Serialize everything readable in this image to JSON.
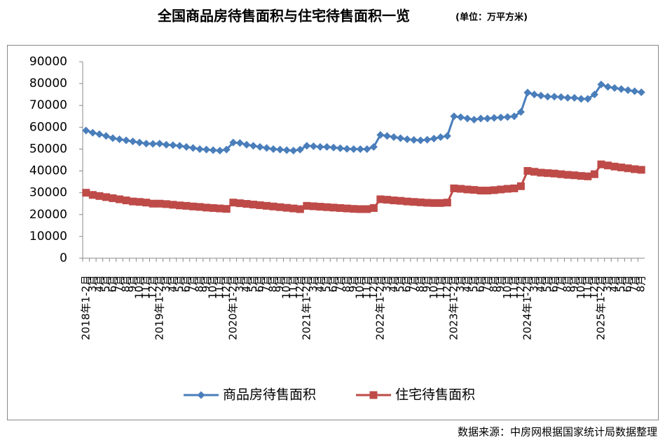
{
  "chart_data": {
    "type": "line",
    "title": "全国商品房待售面积与住宅待售面积一览",
    "subtitle": "(单位：万平方米)",
    "source": "数据来源：中房网根据国家统计局数据整理",
    "categories": [
      "2018年1-2月",
      "3月",
      "4月",
      "5月",
      "6月",
      "7月",
      "8月",
      "9月",
      "10月",
      "11月",
      "12月",
      "2019年1-2月",
      "3月",
      "4月",
      "5月",
      "6月",
      "7月",
      "8月",
      "9月",
      "10月",
      "11月",
      "12月",
      "2020年1-2月",
      "3月",
      "4月",
      "5月",
      "6月",
      "7月",
      "8月",
      "9月",
      "10月",
      "11月",
      "12月",
      "2021年1-2月",
      "3月",
      "4月",
      "5月",
      "6月",
      "7月",
      "8月",
      "9月",
      "10月",
      "11月",
      "12月",
      "2022年1-2月",
      "3月",
      "4月",
      "5月",
      "6月",
      "7月",
      "8月",
      "9月",
      "10月",
      "11月",
      "12月",
      "2023年1-2月",
      "3月",
      "4月",
      "5月",
      "6月",
      "7月",
      "8月",
      "9月",
      "10月",
      "11月",
      "12月",
      "2024年1-2月",
      "3月",
      "4月",
      "5月",
      "6月",
      "7月",
      "8月",
      "9月",
      "10月",
      "11月",
      "12月",
      "2025年1-2月",
      "3月",
      "4月",
      "5月",
      "6月",
      "7月",
      "8月"
    ],
    "series": [
      {
        "name": "商品房待售面积",
        "color": "#4a7ebb",
        "marker": "diamond",
        "values": [
          58500,
          57500,
          56800,
          56000,
          55000,
          54500,
          54000,
          53500,
          53000,
          52500,
          52400,
          52500,
          52000,
          51800,
          51500,
          51000,
          50500,
          50000,
          49800,
          49500,
          49300,
          49800,
          53000,
          52800,
          52000,
          51500,
          51000,
          50500,
          50000,
          49800,
          49500,
          49300,
          49800,
          51500,
          51300,
          51000,
          51000,
          50700,
          50400,
          50100,
          50000,
          50000,
          50000,
          51000,
          56500,
          56000,
          55500,
          55000,
          54500,
          54200,
          54000,
          54300,
          54800,
          55500,
          56000,
          65000,
          64600,
          64000,
          63500,
          64000,
          64000,
          64300,
          64500,
          64700,
          65000,
          67000,
          75900,
          75000,
          74500,
          74000,
          74000,
          73800,
          73500,
          73500,
          73000,
          73000,
          75000,
          79600,
          78500,
          78000,
          77500,
          77000,
          76500,
          76000
        ]
      },
      {
        "name": "住宅待售面积",
        "color": "#be4b48",
        "marker": "square",
        "values": [
          30000,
          29000,
          28500,
          28000,
          27500,
          27000,
          26500,
          26000,
          25800,
          25500,
          25000,
          25000,
          24800,
          24500,
          24200,
          24000,
          23700,
          23500,
          23200,
          23000,
          22800,
          22600,
          25500,
          25200,
          24900,
          24600,
          24300,
          24000,
          23700,
          23400,
          23100,
          22800,
          22500,
          24000,
          23800,
          23600,
          23400,
          23200,
          23000,
          22800,
          22600,
          22500,
          22500,
          23000,
          27000,
          26800,
          26500,
          26300,
          26000,
          25800,
          25600,
          25400,
          25300,
          25300,
          25500,
          32000,
          31800,
          31500,
          31300,
          31000,
          31000,
          31200,
          31500,
          31800,
          32000,
          33000,
          40000,
          39600,
          39200,
          39000,
          38800,
          38500,
          38200,
          38000,
          37700,
          37500,
          38500,
          43000,
          42500,
          42000,
          41600,
          41200,
          40800,
          40500
        ]
      }
    ],
    "ylim": [
      0,
      90000
    ],
    "yticks": [
      0,
      10000,
      20000,
      30000,
      40000,
      50000,
      60000,
      70000,
      80000,
      90000
    ],
    "grid": false,
    "legend": "bottom"
  }
}
